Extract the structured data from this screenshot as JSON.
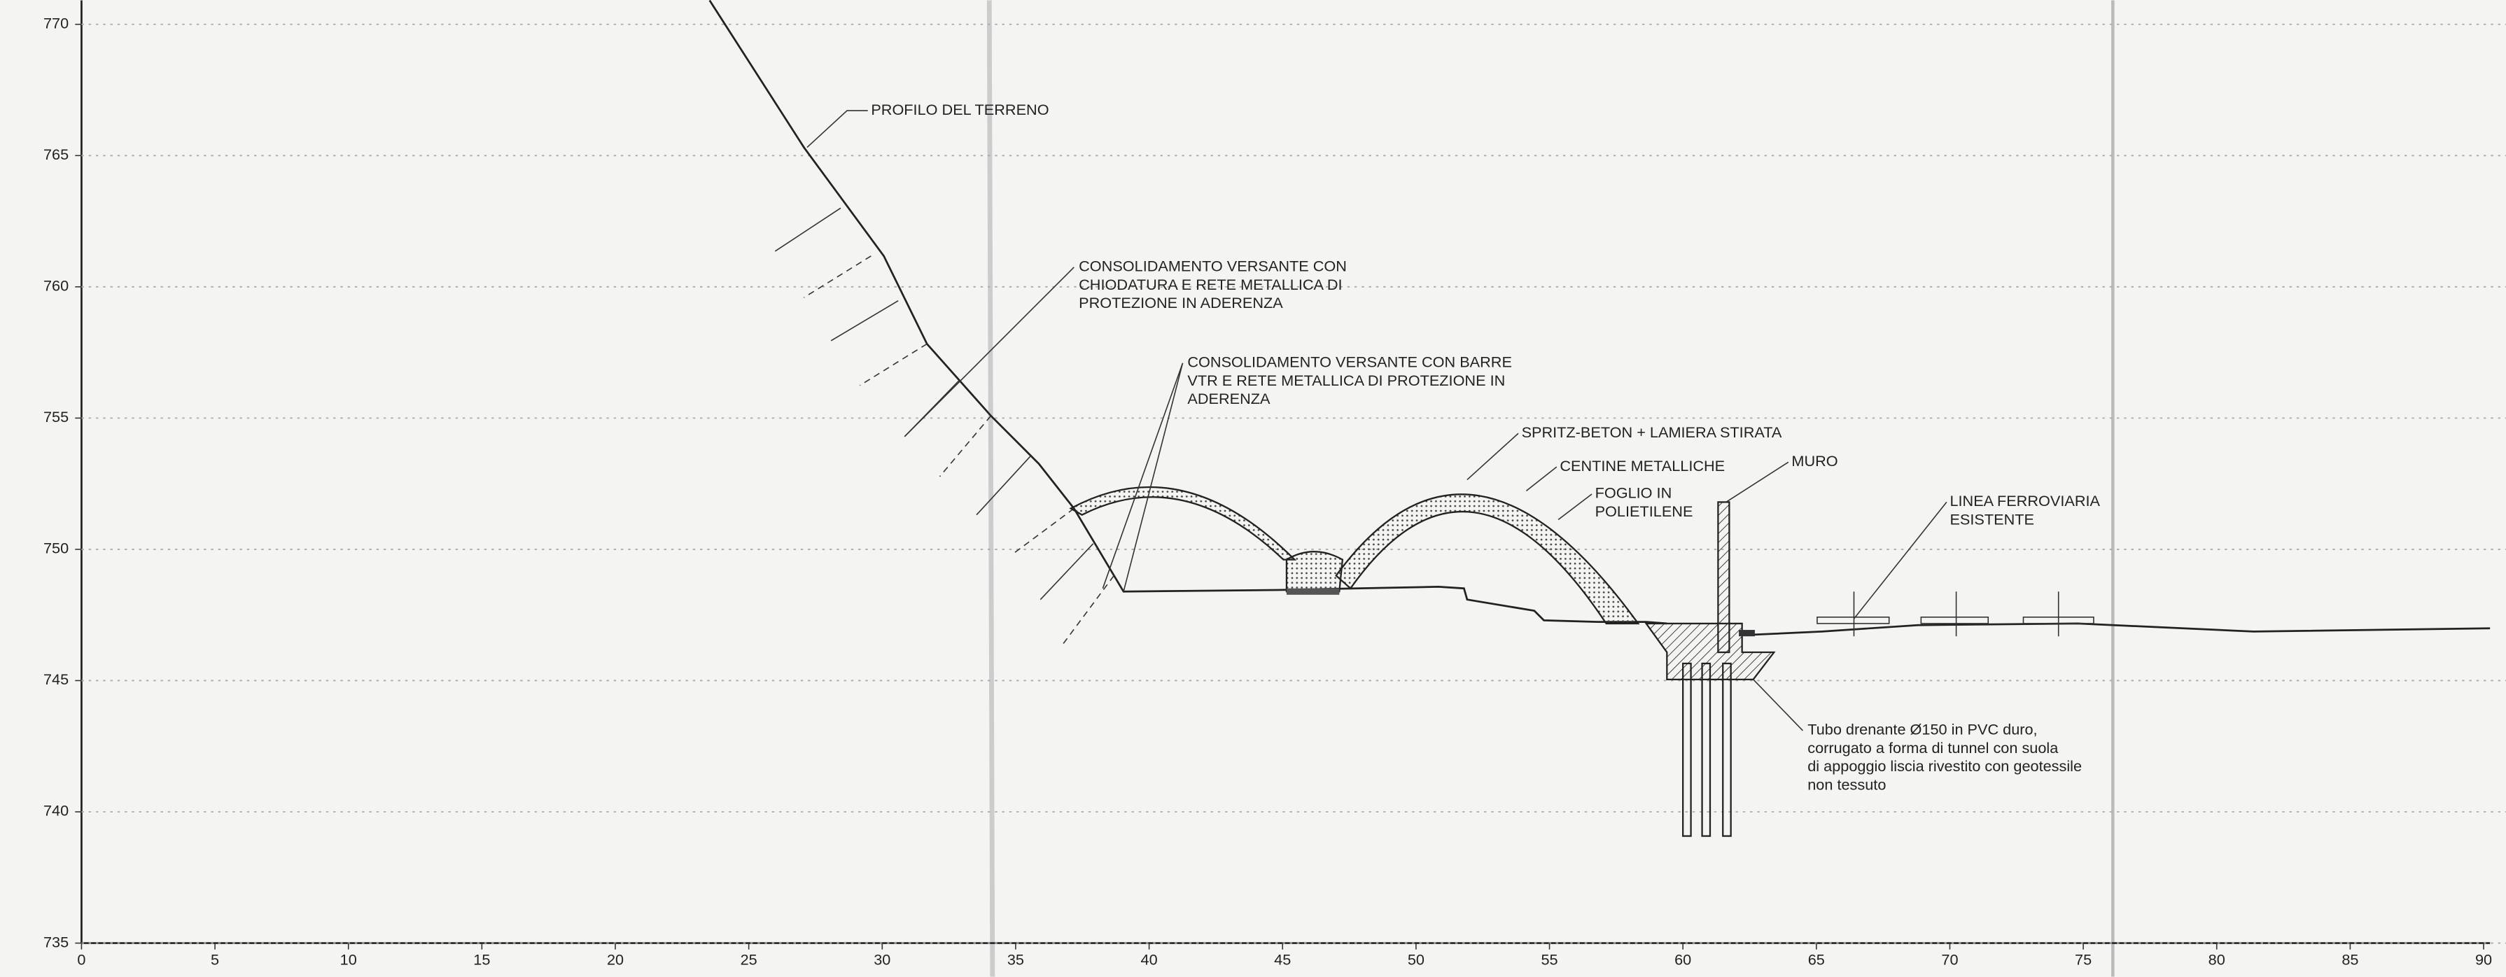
{
  "x_axis": {
    "ticks": [
      0,
      5,
      10,
      15,
      20,
      25,
      30,
      35,
      40,
      45,
      50,
      55,
      60,
      65,
      70,
      75,
      80,
      85,
      90
    ]
  },
  "y_axis": {
    "ticks": [
      770,
      765,
      760,
      755,
      750,
      745,
      740,
      735
    ]
  },
  "annotations": [
    {
      "lines": [
        "PROFILO DEL TERRENO"
      ]
    },
    {
      "lines": [
        "CONSOLIDAMENTO VERSANTE CON",
        "CHIODATURA E RETE METALLICA DI",
        "PROTEZIONE IN ADERENZA"
      ]
    },
    {
      "lines": [
        "CONSOLIDAMENTO VERSANTE CON BARRE",
        "VTR E RETE METALLICA DI PROTEZIONE IN",
        "ADERENZA"
      ]
    },
    {
      "lines": [
        "SPRITZ-BETON + LAMIERA STIRATA"
      ]
    },
    {
      "lines": [
        "CENTINE METALLICHE"
      ]
    },
    {
      "lines": [
        "FOGLIO IN",
        "POLIETILENE"
      ]
    },
    {
      "lines": [
        "MURO"
      ]
    },
    {
      "lines": [
        "LINEA FERROVIARIA",
        "ESISTENTE"
      ]
    },
    {
      "lines": [
        "Tubo drenante Ø150 in PVC duro,",
        "corrugato a forma di tunnel con suola",
        "di appoggio liscia rivestito con geotessile",
        "non tessuto"
      ]
    }
  ]
}
